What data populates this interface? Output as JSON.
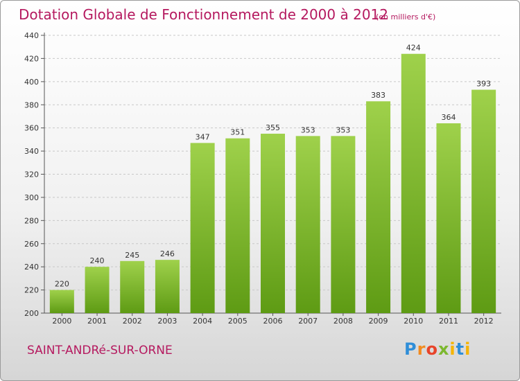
{
  "header": {
    "title": "Dotation Globale de Fonctionnement de 2000 à 2012",
    "unit": "(en milliers d'€)"
  },
  "footer": {
    "commune": "SAINT-ANDRé-SUR-ORNE",
    "logo": "Proxiti"
  },
  "colors": {
    "bar_top": "#9fd14b",
    "bar_bottom": "#5e9b14",
    "title": "#b5195f"
  },
  "chart_data": {
    "type": "bar",
    "title": "Dotation Globale de Fonctionnement de 2000 à 2012",
    "subtitle": "(en milliers d'€)",
    "xlabel": "",
    "ylabel": "",
    "categories": [
      "2000",
      "2001",
      "2002",
      "2003",
      "2004",
      "2005",
      "2006",
      "2007",
      "2008",
      "2009",
      "2010",
      "2011",
      "2012"
    ],
    "values": [
      220,
      240,
      245,
      246,
      347,
      351,
      355,
      353,
      353,
      383,
      424,
      364,
      393
    ],
    "ylim": [
      200,
      440
    ],
    "yticks": [
      200,
      220,
      240,
      260,
      280,
      300,
      320,
      340,
      360,
      380,
      400,
      420,
      440
    ],
    "grid": true,
    "legend": "none"
  }
}
